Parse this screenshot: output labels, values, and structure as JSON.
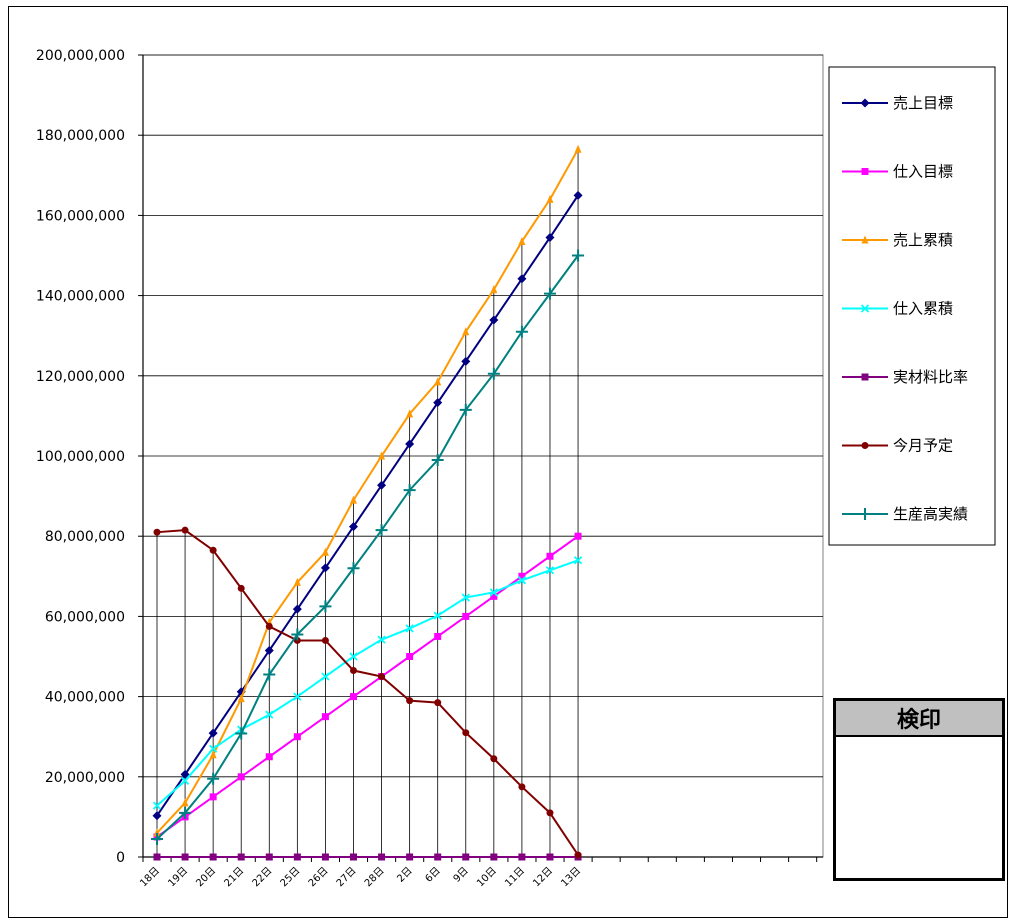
{
  "chart_data": {
    "type": "line",
    "categories": [
      "18日",
      "19日",
      "20日",
      "21日",
      "22日",
      "25日",
      "26日",
      "27日",
      "28日",
      "2日",
      "6日",
      "9日",
      "10日",
      "11日",
      "12日",
      "13日"
    ],
    "ylim": [
      0,
      200000000
    ],
    "yticks": [
      0,
      20000000,
      40000000,
      60000000,
      80000000,
      100000000,
      120000000,
      140000000,
      160000000,
      180000000,
      200000000
    ],
    "ytick_labels": [
      "0",
      "20,000,000",
      "40,000,000",
      "60,000,000",
      "80,000,000",
      "100,000,000",
      "120,000,000",
      "140,000,000",
      "160,000,000",
      "180,000,000",
      "200,000,000"
    ],
    "grid": "horizontal",
    "legend_position": "right",
    "series": [
      {
        "name": "売上目標",
        "color": "#000080",
        "marker": "diamond",
        "values": [
          10300000,
          20600000,
          30900000,
          41200000,
          51500000,
          61800000,
          72100000,
          82400000,
          92700000,
          103000000,
          113300000,
          123600000,
          133900000,
          144200000,
          154500000,
          165000000
        ]
      },
      {
        "name": "仕入目標",
        "color": "#ff00ff",
        "marker": "square",
        "values": [
          5000000,
          10000000,
          15000000,
          20000000,
          25000000,
          30000000,
          35000000,
          40000000,
          45000000,
          50000000,
          55000000,
          60000000,
          65000000,
          70000000,
          75000000,
          80000000
        ]
      },
      {
        "name": "売上累積",
        "color": "#ff9900",
        "marker": "triangle",
        "values": [
          6000000,
          13500000,
          25500000,
          39500000,
          58500000,
          68500000,
          76000000,
          89000000,
          100000000,
          110500000,
          118500000,
          131000000,
          141500000,
          153500000,
          164000000,
          176500000
        ]
      },
      {
        "name": "仕入累積",
        "color": "#00ffff",
        "marker": "x",
        "values": [
          12800000,
          19000000,
          27000000,
          31800000,
          35500000,
          40000000,
          45000000,
          50000000,
          54200000,
          57000000,
          60200000,
          64700000,
          66000000,
          69000000,
          71500000,
          74000000
        ]
      },
      {
        "name": "実材料比率",
        "color": "#800080",
        "marker": "square",
        "values": [
          0,
          0,
          0,
          0,
          0,
          0,
          0,
          0,
          0,
          0,
          0,
          0,
          0,
          0,
          0,
          0
        ]
      },
      {
        "name": "今月予定",
        "color": "#800000",
        "marker": "circle",
        "values": [
          81000000,
          81500000,
          76500000,
          67000000,
          57500000,
          54000000,
          54000000,
          46500000,
          45000000,
          39000000,
          38500000,
          31000000,
          24500000,
          17500000,
          11000000,
          500000
        ]
      },
      {
        "name": "生産高実績",
        "color": "#008080",
        "marker": "plus",
        "values": [
          4500000,
          11000000,
          19500000,
          30800000,
          45500000,
          55500000,
          62500000,
          72000000,
          81500000,
          91500000,
          99000000,
          111500000,
          120500000,
          131000000,
          140500000,
          150000000
        ]
      }
    ]
  },
  "stamp": {
    "title": "検印"
  }
}
